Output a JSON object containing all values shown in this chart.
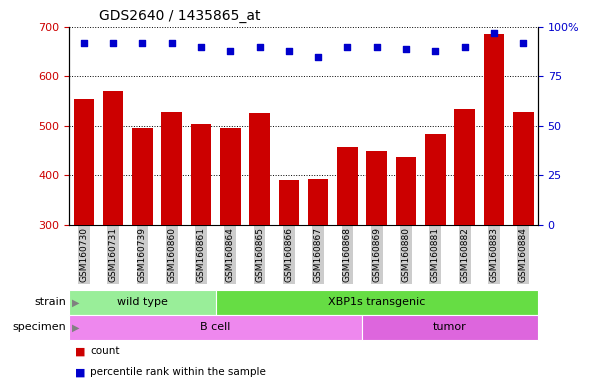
{
  "title": "GDS2640 / 1435865_at",
  "samples": [
    "GSM160730",
    "GSM160731",
    "GSM160739",
    "GSM160860",
    "GSM160861",
    "GSM160864",
    "GSM160865",
    "GSM160866",
    "GSM160867",
    "GSM160868",
    "GSM160869",
    "GSM160880",
    "GSM160881",
    "GSM160882",
    "GSM160883",
    "GSM160884"
  ],
  "counts": [
    555,
    570,
    495,
    528,
    503,
    495,
    525,
    390,
    392,
    458,
    448,
    437,
    483,
    533,
    685,
    528
  ],
  "percentiles": [
    92,
    92,
    92,
    92,
    90,
    88,
    90,
    88,
    85,
    90,
    90,
    89,
    88,
    90,
    97,
    92
  ],
  "ylim_left": [
    300,
    700
  ],
  "ylim_right": [
    0,
    100
  ],
  "yticks_left": [
    300,
    400,
    500,
    600,
    700
  ],
  "yticks_right": [
    0,
    25,
    50,
    75,
    100
  ],
  "bar_color": "#cc0000",
  "dot_color": "#0000cc",
  "bar_bottom": 300,
  "grid_lines": [
    400,
    500,
    600,
    700
  ],
  "strain_groups": [
    {
      "label": "wild type",
      "start": 0,
      "end": 5,
      "color": "#99ee99"
    },
    {
      "label": "XBP1s transgenic",
      "start": 5,
      "end": 16,
      "color": "#66dd44"
    }
  ],
  "specimen_groups": [
    {
      "label": "B cell",
      "start": 0,
      "end": 10,
      "color": "#ee88ee"
    },
    {
      "label": "tumor",
      "start": 10,
      "end": 16,
      "color": "#dd66dd"
    }
  ],
  "tick_bg_color": "#cccccc",
  "legend_items": [
    {
      "color": "#cc0000",
      "label": "count"
    },
    {
      "color": "#0000cc",
      "label": "percentile rank within the sample"
    }
  ]
}
